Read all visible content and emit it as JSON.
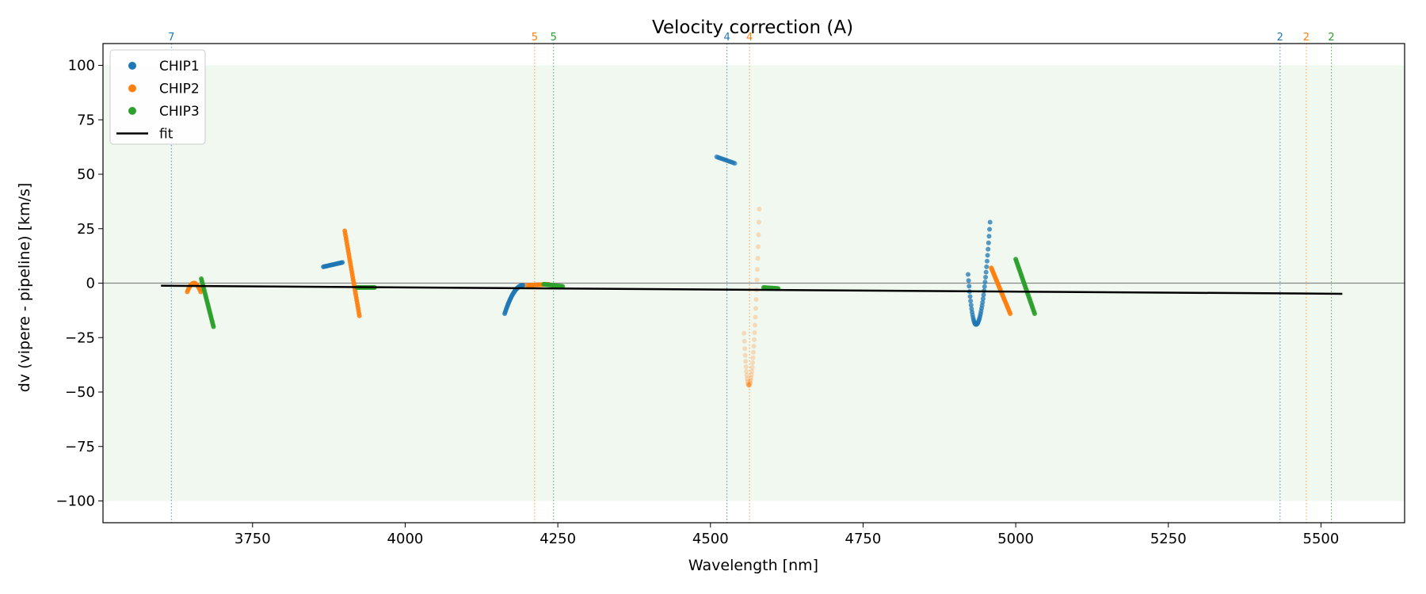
{
  "chart_data": {
    "type": "scatter",
    "title": "Velocity correction (A)",
    "xlabel": "Wavelength [nm]",
    "ylabel": "dv (vipere - pipeline) [km/s]",
    "xlim": [
      3505,
      5637
    ],
    "ylim": [
      -110,
      110
    ],
    "xticks": [
      3750,
      4000,
      4250,
      4500,
      4750,
      5000,
      5250,
      5500
    ],
    "xtick_labels": [
      "3750",
      "4000",
      "4250",
      "4500",
      "4750",
      "5000",
      "5250",
      "5500"
    ],
    "yticks": [
      -100,
      -75,
      -50,
      -25,
      0,
      25,
      50,
      75,
      100
    ],
    "ytick_labels": [
      "−100",
      "−75",
      "−50",
      "−25",
      "0",
      "25",
      "50",
      "75",
      "100"
    ],
    "shaded_band": {
      "y": [
        -100,
        100
      ],
      "color": "#2ca02c",
      "opacity": 0.07
    },
    "zero_line": {
      "y": 0,
      "color": "#888888"
    },
    "legend": {
      "position": "upper-left",
      "entries": [
        {
          "label": "CHIP1",
          "color": "#1f77b4",
          "kind": "marker"
        },
        {
          "label": "CHIP2",
          "color": "#ff7f0e",
          "kind": "marker"
        },
        {
          "label": "CHIP3",
          "color": "#2ca02c",
          "kind": "marker"
        },
        {
          "label": "fit",
          "color": "#000000",
          "kind": "line"
        }
      ]
    },
    "vertical_markers": [
      {
        "x": 3617,
        "label": "7",
        "color": "#1f77b4"
      },
      {
        "x": 4212,
        "label": "5",
        "color": "#ff7f0e"
      },
      {
        "x": 4243,
        "label": "5",
        "color": "#2ca02c"
      },
      {
        "x": 4527,
        "label": "4",
        "color": "#1f77b4"
      },
      {
        "x": 4564,
        "label": "4",
        "color": "#ff7f0e"
      },
      {
        "x": 5433,
        "label": "2",
        "color": "#1f77b4"
      },
      {
        "x": 5476,
        "label": "2",
        "color": "#ff7f0e"
      },
      {
        "x": 5517,
        "label": "2",
        "color": "#2ca02c"
      }
    ],
    "fit": {
      "x": [
        3600,
        5535
      ],
      "y": [
        -1.2,
        -4.9
      ],
      "color": "#000000"
    },
    "series": [
      {
        "name": "CHIP1",
        "color": "#1f77b4",
        "segments": [
          {
            "shape": "linear",
            "x": [
              3866,
              3897
            ],
            "y": [
              7.5,
              9.5
            ],
            "n": 18,
            "alpha": 0.85
          },
          {
            "shape": "curve",
            "x": [
              4163,
              4193
            ],
            "y": [
              -14,
              -1
            ],
            "n": 30,
            "alpha": 0.85
          },
          {
            "shape": "linear",
            "x": [
              4510,
              4540
            ],
            "y": [
              58,
              55
            ],
            "n": 18,
            "alpha": 0.6
          },
          {
            "shape": "vshape",
            "x": [
              4922,
              4958
            ],
            "ymin": -19,
            "xmin": 4935,
            "yleft": 4,
            "yright": 28,
            "n": 45,
            "alpha": 0.75
          }
        ]
      },
      {
        "name": "CHIP2",
        "color": "#ff7f0e",
        "segments": [
          {
            "shape": "vshape",
            "x": [
              3643,
              3665
            ],
            "ymin": 0,
            "xmin": 3654,
            "yleft": -4,
            "yright": -4,
            "n": 18,
            "alpha": 0.9
          },
          {
            "shape": "linear",
            "x": [
              3901,
              3925
            ],
            "y": [
              24,
              -15
            ],
            "n": 34,
            "alpha": 0.9
          },
          {
            "shape": "linear",
            "x": [
              4200,
              4235
            ],
            "y": [
              -1,
              -0.5
            ],
            "n": 18,
            "alpha": 0.85
          },
          {
            "shape": "vshape",
            "x": [
              4555,
              4580
            ],
            "ymin": -47,
            "xmin": 4563,
            "yleft": -23,
            "yright": 34,
            "n": 40,
            "alpha": 0.25
          },
          {
            "shape": "linear",
            "x": [
              4960,
              4991
            ],
            "y": [
              7,
              -14
            ],
            "n": 30,
            "alpha": 0.9
          }
        ]
      },
      {
        "name": "CHIP3",
        "color": "#2ca02c",
        "segments": [
          {
            "shape": "linear",
            "x": [
              3666,
              3686
            ],
            "y": [
              2,
              -20
            ],
            "n": 26,
            "alpha": 0.9
          },
          {
            "shape": "linear",
            "x": [
              3921,
              3950
            ],
            "y": [
              -2,
              -2
            ],
            "n": 18,
            "alpha": 0.85
          },
          {
            "shape": "linear",
            "x": [
              4227,
              4258
            ],
            "y": [
              -0.5,
              -1.5
            ],
            "n": 18,
            "alpha": 0.85
          },
          {
            "shape": "linear",
            "x": [
              4587,
              4611
            ],
            "y": [
              -2,
              -2.5
            ],
            "n": 18,
            "alpha": 0.85
          },
          {
            "shape": "linear",
            "x": [
              5000,
              5031
            ],
            "y": [
              11,
              -14
            ],
            "n": 32,
            "alpha": 0.9
          }
        ]
      }
    ]
  }
}
